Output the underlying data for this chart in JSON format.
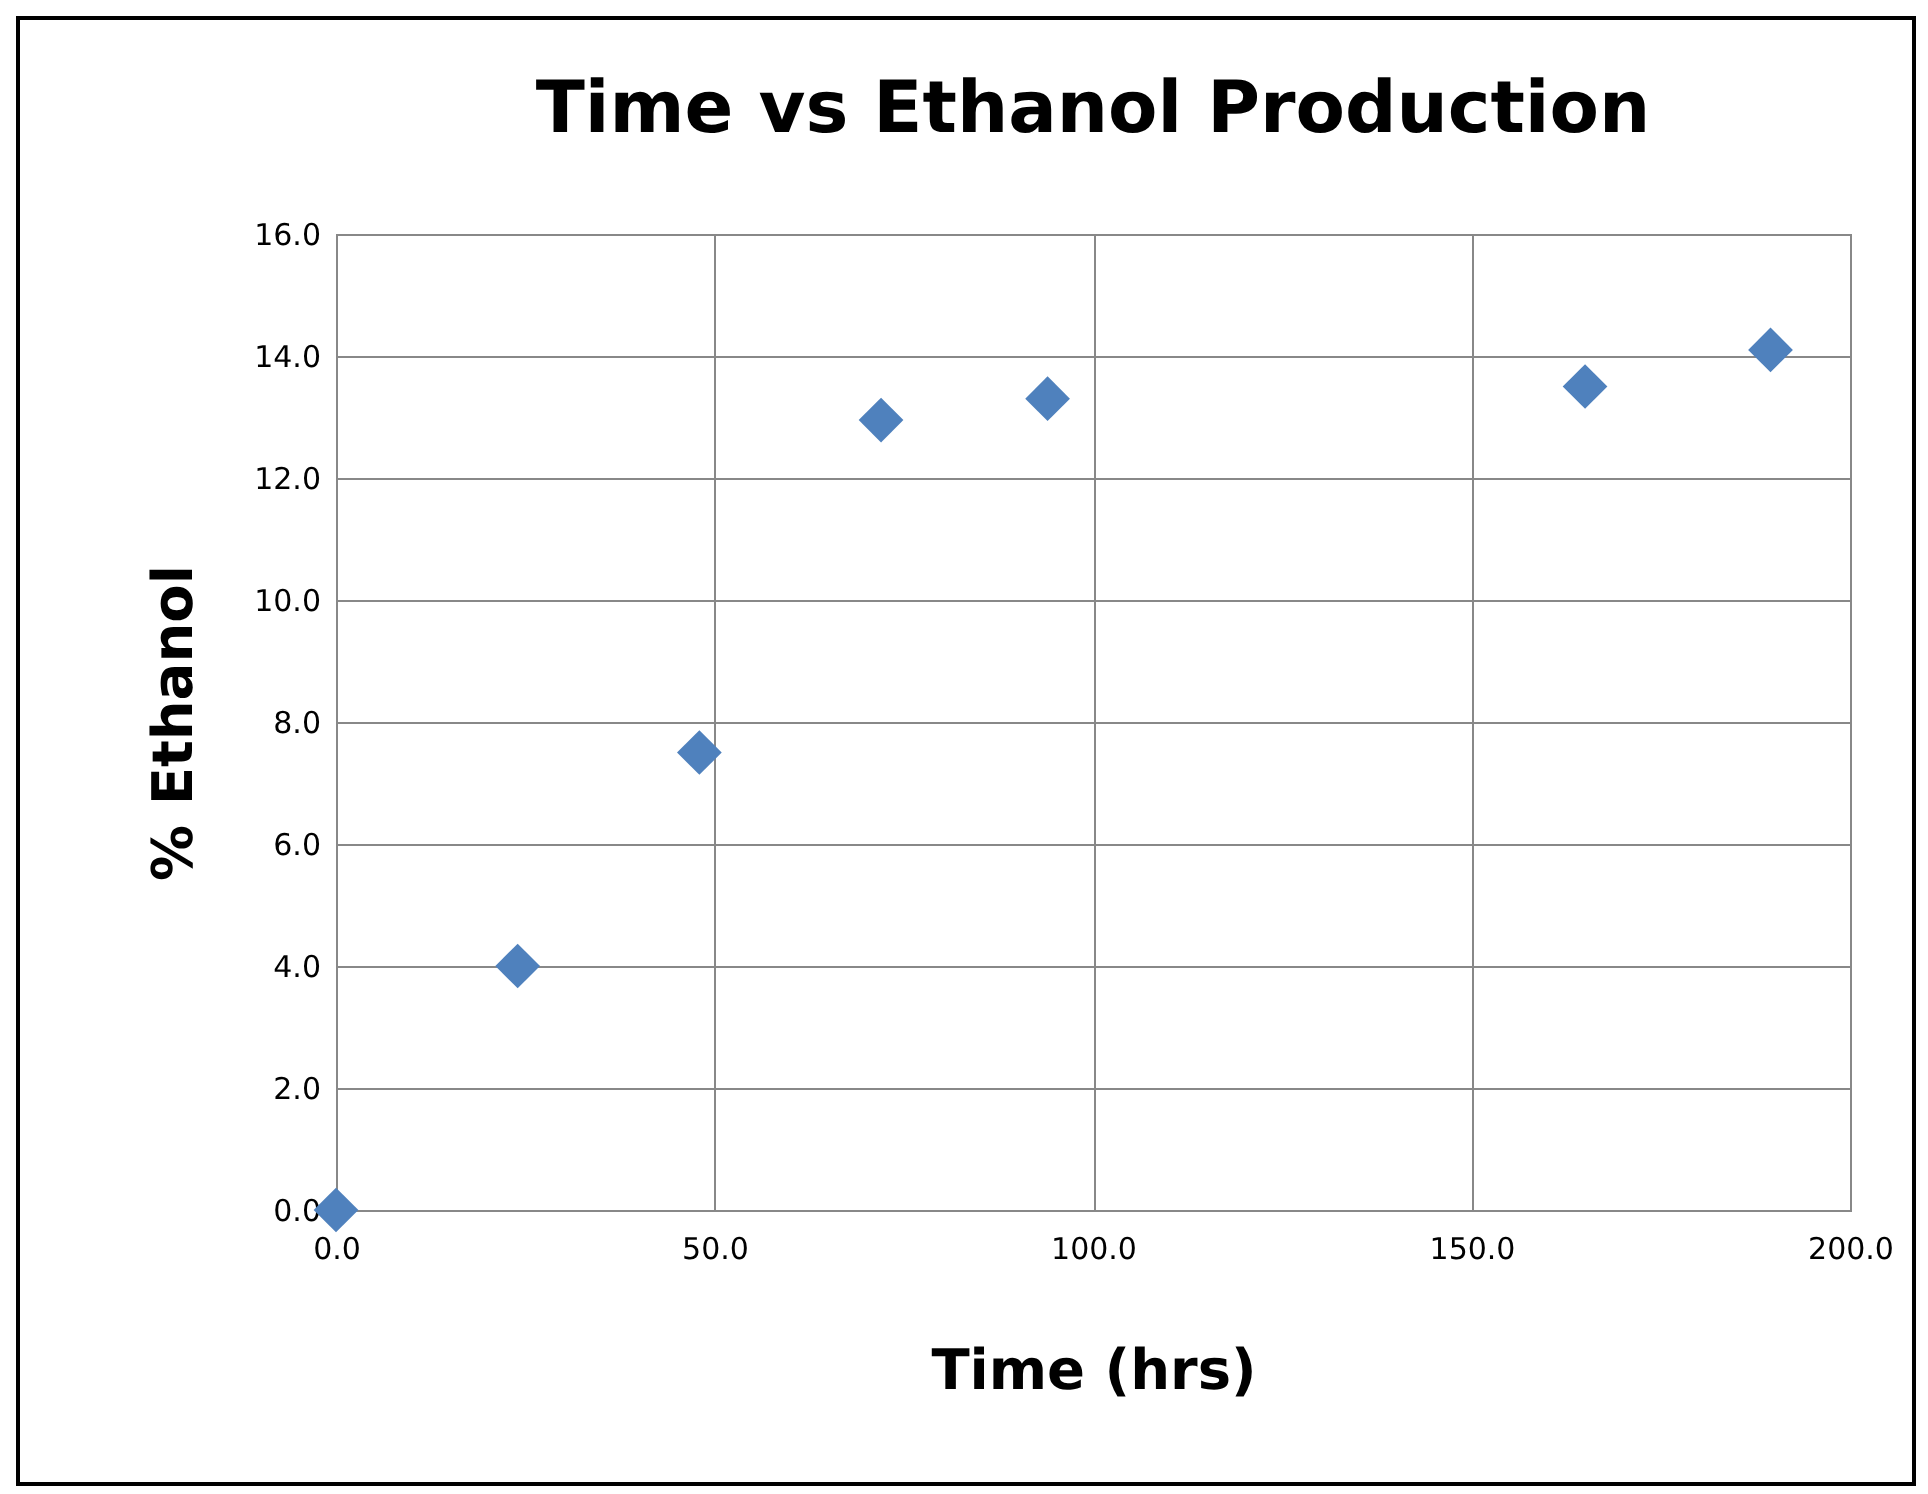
{
  "chart_data": {
    "type": "scatter",
    "title": "Time vs Ethanol Production",
    "xlabel": "Time (hrs)",
    "ylabel": "% Ethanol",
    "x": [
      0,
      24,
      48,
      72,
      94,
      165,
      189.5
    ],
    "series": [
      {
        "color": "#4f81bd",
        "values": [
          0,
          4.0,
          7.5,
          12.95,
          13.3,
          13.5,
          14.1
        ]
      }
    ],
    "xlim": [
      0,
      200
    ],
    "xticks": [
      {
        "value": 0,
        "label": "0.0"
      },
      {
        "value": 50,
        "label": "50.0"
      },
      {
        "value": 100,
        "label": "100.0"
      },
      {
        "value": 150,
        "label": "150.0"
      },
      {
        "value": 200,
        "label": "200.0"
      }
    ],
    "ylim": [
      0,
      16
    ],
    "yticks": [
      {
        "value": 0,
        "label": "0.0"
      },
      {
        "value": 2,
        "label": "2.0"
      },
      {
        "value": 4,
        "label": "4.0"
      },
      {
        "value": 6,
        "label": "6.0"
      },
      {
        "value": 8,
        "label": "8.0"
      },
      {
        "value": 10,
        "label": "10.0"
      },
      {
        "value": 12,
        "label": "12.0"
      },
      {
        "value": 14,
        "label": "14.0"
      },
      {
        "value": 16,
        "label": "16.0"
      }
    ],
    "grid": true,
    "marker": "diamond"
  }
}
